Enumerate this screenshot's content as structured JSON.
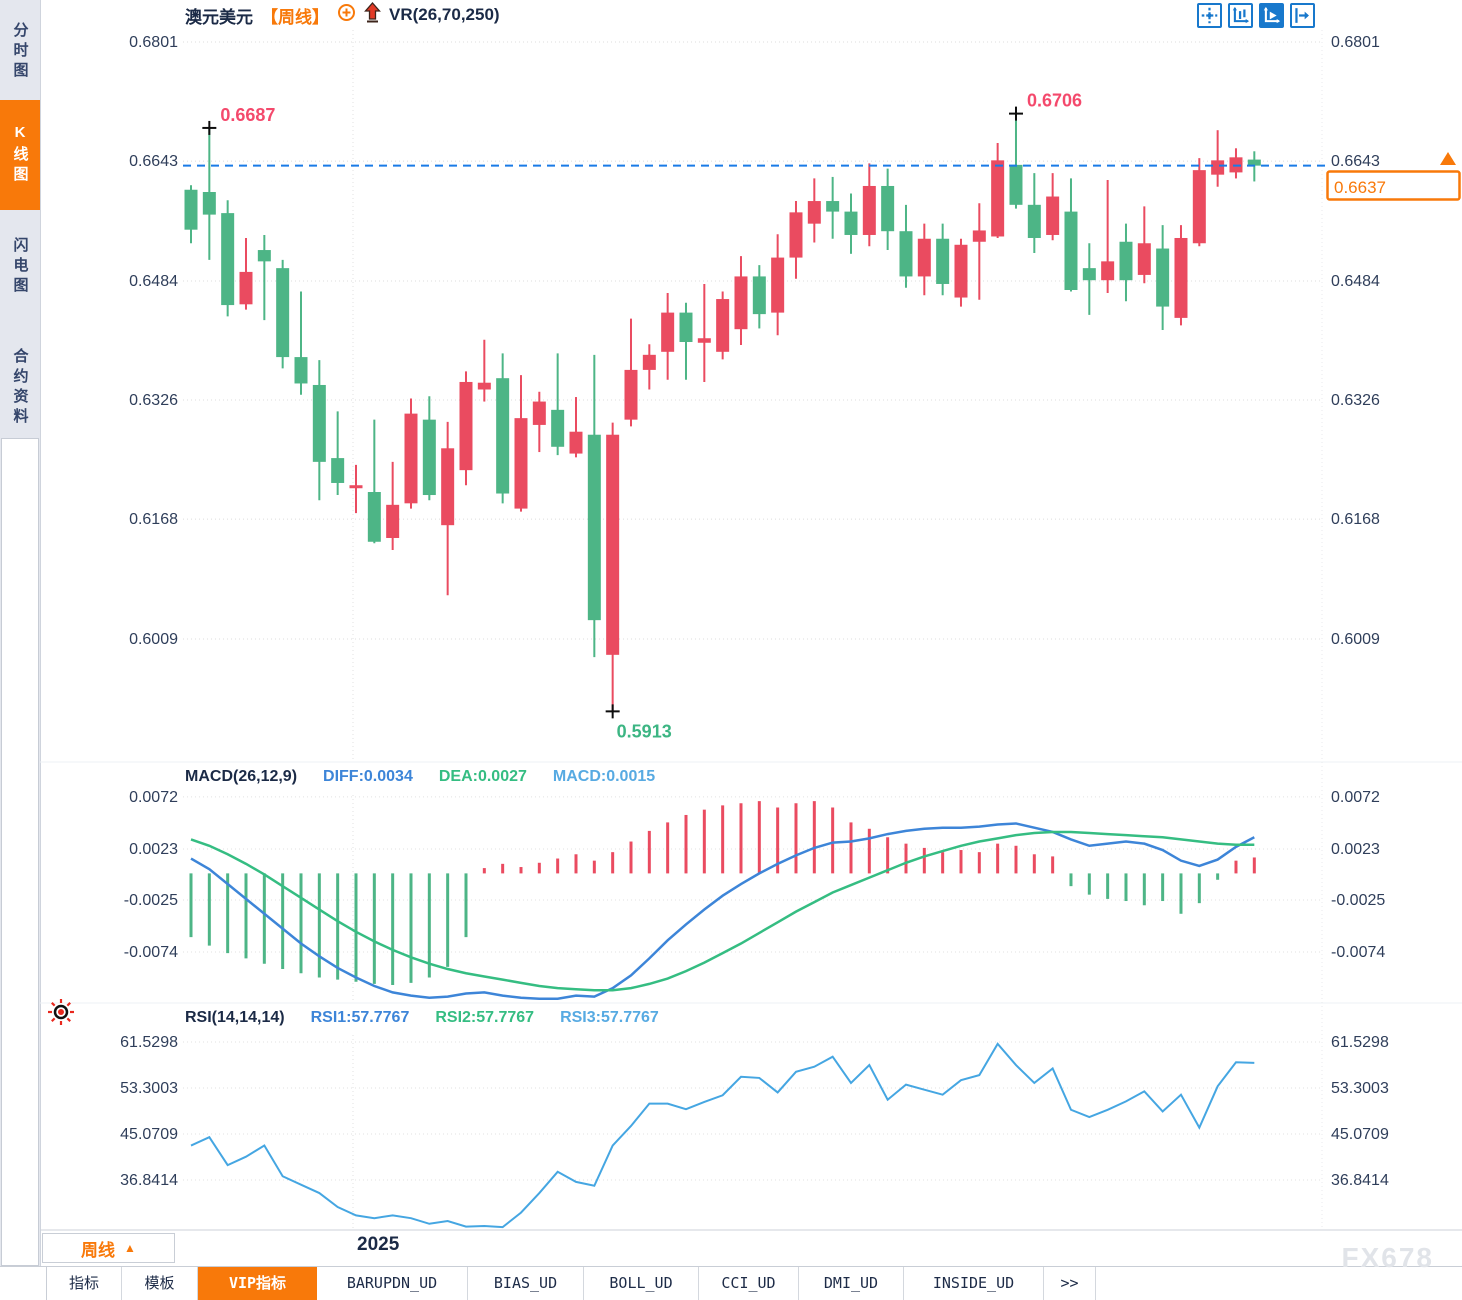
{
  "app": {
    "title": {
      "instrument": "澳元美元",
      "period": "【周线】",
      "indicator": "VR(26,70,250)"
    },
    "watermark": "FX678",
    "accent_orange": "#f8790a",
    "toolbar_icon_blue": "#1878cc"
  },
  "sidebar": {
    "items": [
      {
        "label": "分时图",
        "active": false
      },
      {
        "label": "K线图",
        "active": true
      },
      {
        "label": "闪电图",
        "active": false
      },
      {
        "label": "合约资料",
        "active": false
      }
    ]
  },
  "toolbar": {
    "icons": [
      {
        "name": "pan-crosshair-icon",
        "active": false
      },
      {
        "name": "scale-axis-icon",
        "active": false
      },
      {
        "name": "auto-follow-icon",
        "active": true
      },
      {
        "name": "jump-to-latest-icon",
        "active": false
      }
    ]
  },
  "bottom_bar": {
    "period_button": "周线",
    "tabs": [
      {
        "label": "指标",
        "active": false
      },
      {
        "label": "模板",
        "active": false
      },
      {
        "label": "VIP指标",
        "active": true
      },
      {
        "label": "BARUPDN_UD",
        "active": false
      },
      {
        "label": "BIAS_UD",
        "active": false
      },
      {
        "label": "BOLL_UD",
        "active": false
      },
      {
        "label": "CCI_UD",
        "active": false
      },
      {
        "label": "DMI_UD",
        "active": false
      },
      {
        "label": "INSIDE_UD",
        "active": false
      },
      {
        "label": ">>",
        "active": false
      }
    ]
  },
  "chart_data": [
    {
      "type": "candlestick",
      "symbol": "澳元美元",
      "interval": "周线",
      "up_color": "#ea4b60",
      "down_color": "#4db586",
      "y_axis": {
        "labels": [
          "0.6801",
          "0.6643",
          "0.6484",
          "0.6326",
          "0.6168",
          "0.6009"
        ],
        "values": [
          0.6801,
          0.6643,
          0.6484,
          0.6326,
          0.6168,
          0.6009
        ]
      },
      "x_axis": {
        "year_label": "2025"
      },
      "current_price": {
        "value": 0.6637,
        "label": "0.6637",
        "line_color": "#1a7be6"
      },
      "annotations": [
        {
          "kind": "high",
          "label": "0.6687",
          "value": 0.6687,
          "index": 1,
          "color": "#f4496c"
        },
        {
          "kind": "high",
          "label": "0.6706",
          "value": 0.6706,
          "index": 45,
          "color": "#f4496c"
        },
        {
          "kind": "low",
          "label": "0.5913",
          "value": 0.5913,
          "index": 23,
          "color": "#3cb583"
        }
      ],
      "ohlc": [
        [
          0.6605,
          0.6611,
          0.6534,
          0.6552
        ],
        [
          0.6602,
          0.6687,
          0.6512,
          0.6572
        ],
        [
          0.6574,
          0.6591,
          0.6437,
          0.6452
        ],
        [
          0.6453,
          0.6541,
          0.6446,
          0.6496
        ],
        [
          0.6525,
          0.6545,
          0.6432,
          0.651
        ],
        [
          0.6501,
          0.6512,
          0.6368,
          0.6383
        ],
        [
          0.6383,
          0.647,
          0.6333,
          0.6348
        ],
        [
          0.6346,
          0.6379,
          0.6193,
          0.6244
        ],
        [
          0.6249,
          0.6311,
          0.62,
          0.6216
        ],
        [
          0.6209,
          0.624,
          0.6176,
          0.6213
        ],
        [
          0.6204,
          0.63,
          0.6136,
          0.6138
        ],
        [
          0.6143,
          0.6244,
          0.6127,
          0.6187
        ],
        [
          0.6189,
          0.6328,
          0.6182,
          0.6308
        ],
        [
          0.63,
          0.6331,
          0.6193,
          0.62
        ],
        [
          0.616,
          0.6297,
          0.6067,
          0.6262
        ],
        [
          0.6233,
          0.6364,
          0.6213,
          0.635
        ],
        [
          0.634,
          0.6406,
          0.6324,
          0.6349
        ],
        [
          0.6355,
          0.6388,
          0.6189,
          0.6202
        ],
        [
          0.6182,
          0.6359,
          0.6178,
          0.6302
        ],
        [
          0.6293,
          0.6337,
          0.6257,
          0.6324
        ],
        [
          0.6313,
          0.6388,
          0.6253,
          0.6264
        ],
        [
          0.6255,
          0.633,
          0.625,
          0.6284
        ],
        [
          0.628,
          0.6386,
          0.5985,
          0.6034
        ],
        [
          0.5988,
          0.6296,
          0.5913,
          0.628
        ],
        [
          0.63,
          0.6434,
          0.6291,
          0.6366
        ],
        [
          0.6366,
          0.64,
          0.634,
          0.6386
        ],
        [
          0.639,
          0.6468,
          0.6353,
          0.6442
        ],
        [
          0.6442,
          0.6455,
          0.6353,
          0.6403
        ],
        [
          0.6402,
          0.648,
          0.635,
          0.6408
        ],
        [
          0.639,
          0.647,
          0.638,
          0.646
        ],
        [
          0.642,
          0.6517,
          0.6399,
          0.649
        ],
        [
          0.649,
          0.6505,
          0.6421,
          0.644
        ],
        [
          0.6442,
          0.6546,
          0.6412,
          0.6515
        ],
        [
          0.6515,
          0.659,
          0.6487,
          0.6575
        ],
        [
          0.656,
          0.662,
          0.6535,
          0.659
        ],
        [
          0.659,
          0.6622,
          0.654,
          0.6576
        ],
        [
          0.6576,
          0.66,
          0.652,
          0.6545
        ],
        [
          0.6545,
          0.664,
          0.653,
          0.661
        ],
        [
          0.661,
          0.6633,
          0.6525,
          0.655
        ],
        [
          0.655,
          0.6585,
          0.6475,
          0.649
        ],
        [
          0.649,
          0.656,
          0.6465,
          0.654
        ],
        [
          0.654,
          0.656,
          0.6465,
          0.648
        ],
        [
          0.6462,
          0.654,
          0.645,
          0.6532
        ],
        [
          0.6536,
          0.6587,
          0.6459,
          0.6551
        ],
        [
          0.6543,
          0.6667,
          0.6541,
          0.6644
        ],
        [
          0.6638,
          0.6706,
          0.658,
          0.6585
        ],
        [
          0.6585,
          0.6627,
          0.6521,
          0.6541
        ],
        [
          0.6545,
          0.6627,
          0.6538,
          0.6596
        ],
        [
          0.6576,
          0.662,
          0.647,
          0.6472
        ],
        [
          0.6501,
          0.6534,
          0.6439,
          0.6485
        ],
        [
          0.6485,
          0.6618,
          0.6468,
          0.651
        ],
        [
          0.6536,
          0.656,
          0.6457,
          0.6485
        ],
        [
          0.6492,
          0.6583,
          0.6481,
          0.6534
        ],
        [
          0.6527,
          0.6558,
          0.6419,
          0.645
        ],
        [
          0.6435,
          0.6558,
          0.6425,
          0.6541
        ],
        [
          0.6534,
          0.6647,
          0.653,
          0.6631
        ],
        [
          0.6625,
          0.6684,
          0.6609,
          0.6644
        ],
        [
          0.6628,
          0.666,
          0.662,
          0.6648
        ],
        [
          0.6645,
          0.6656,
          0.6616,
          0.6637
        ]
      ]
    },
    {
      "type": "macd",
      "title": "MACD(26,12,9)",
      "readouts": {
        "diff": "DIFF:0.0034",
        "dea": "DEA:0.0027",
        "macd": "MACD:0.0015"
      },
      "colors": {
        "diff": "#3d85d8",
        "dea": "#35bd82",
        "pos": "#ea4b60",
        "neg": "#4db586"
      },
      "y_axis": {
        "labels": [
          "0.0072",
          "0.0023",
          "-0.0025",
          "-0.0074"
        ],
        "values": [
          0.0072,
          0.0023,
          -0.0025,
          -0.0074
        ]
      },
      "histogram": [
        -0.006,
        -0.0068,
        -0.0075,
        -0.008,
        -0.0085,
        -0.009,
        -0.0094,
        -0.0098,
        -0.01,
        -0.0102,
        -0.0104,
        -0.0105,
        -0.0103,
        -0.0098,
        -0.0088,
        -0.006,
        0.0005,
        0.0009,
        0.0006,
        0.001,
        0.0014,
        0.0018,
        0.0012,
        0.002,
        0.003,
        0.004,
        0.0048,
        0.0055,
        0.006,
        0.0064,
        0.0066,
        0.0068,
        0.0062,
        0.0066,
        0.0068,
        0.0062,
        0.0048,
        0.0042,
        0.0034,
        0.0028,
        0.0024,
        0.002,
        0.0022,
        0.002,
        0.0028,
        0.0026,
        0.0018,
        0.0016,
        -0.0012,
        -0.002,
        -0.0024,
        -0.0026,
        -0.003,
        -0.0026,
        -0.0038,
        -0.0028,
        -0.0006,
        0.0012,
        0.0015
      ],
      "diff": [
        0.0014,
        0.0004,
        -0.001,
        -0.0024,
        -0.0038,
        -0.0052,
        -0.0066,
        -0.0078,
        -0.0089,
        -0.0098,
        -0.0106,
        -0.0112,
        -0.0115,
        -0.0117,
        -0.0116,
        -0.0113,
        -0.0112,
        -0.0115,
        -0.0117,
        -0.0118,
        -0.0118,
        -0.0115,
        -0.0116,
        -0.0108,
        -0.0096,
        -0.008,
        -0.0063,
        -0.0048,
        -0.0034,
        -0.0021,
        -0.001,
        0.0,
        0.0009,
        0.0017,
        0.0024,
        0.0029,
        0.003,
        0.0033,
        0.0037,
        0.004,
        0.0042,
        0.0043,
        0.0043,
        0.0044,
        0.0046,
        0.0047,
        0.0043,
        0.0039,
        0.0032,
        0.0026,
        0.0028,
        0.003,
        0.0028,
        0.0022,
        0.0012,
        0.0007,
        0.0013,
        0.0025,
        0.0034
      ],
      "dea": [
        0.0032,
        0.0026,
        0.0018,
        0.0009,
        -0.0001,
        -0.0012,
        -0.0023,
        -0.0034,
        -0.0045,
        -0.0055,
        -0.0064,
        -0.0072,
        -0.0079,
        -0.0085,
        -0.009,
        -0.0094,
        -0.0097,
        -0.01,
        -0.0103,
        -0.0106,
        -0.0108,
        -0.0109,
        -0.011,
        -0.011,
        -0.0108,
        -0.0104,
        -0.0099,
        -0.0092,
        -0.0084,
        -0.0075,
        -0.0066,
        -0.0056,
        -0.0046,
        -0.0036,
        -0.0027,
        -0.0018,
        -0.0011,
        -0.0004,
        0.0003,
        0.001,
        0.0016,
        0.0021,
        0.0026,
        0.003,
        0.0033,
        0.0036,
        0.0038,
        0.0039,
        0.0039,
        0.0038,
        0.0037,
        0.0036,
        0.0035,
        0.0034,
        0.0032,
        0.003,
        0.0028,
        0.0027,
        0.0027
      ]
    },
    {
      "type": "line",
      "title": "RSI(14,14,14)",
      "readouts": {
        "rsi1": "RSI1:57.7767",
        "rsi2": "RSI2:57.7767",
        "rsi3": "RSI3:57.7767"
      },
      "color": "#45a6e2",
      "y_axis": {
        "labels": [
          "61.5298",
          "53.3003",
          "45.0709",
          "36.8414"
        ],
        "values": [
          61.5298,
          53.3003,
          45.0709,
          36.8414
        ]
      },
      "values": [
        43.0,
        44.5,
        39.5,
        41.0,
        43.0,
        37.5,
        36.0,
        34.5,
        32.0,
        30.5,
        30.0,
        30.5,
        30.0,
        29.0,
        29.5,
        28.5,
        28.6,
        28.4,
        31.0,
        34.5,
        38.3,
        36.5,
        35.8,
        43.0,
        46.5,
        50.5,
        50.5,
        49.5,
        50.8,
        52.0,
        55.3,
        55.1,
        52.5,
        56.2,
        57.1,
        58.9,
        54.2,
        57.4,
        51.2,
        53.9,
        53.0,
        52.1,
        54.7,
        55.6,
        61.2,
        57.4,
        54.2,
        56.8,
        49.4,
        48.1,
        49.4,
        50.9,
        52.7,
        49.1,
        52.1,
        46.2,
        53.6,
        57.9,
        57.8
      ]
    }
  ]
}
